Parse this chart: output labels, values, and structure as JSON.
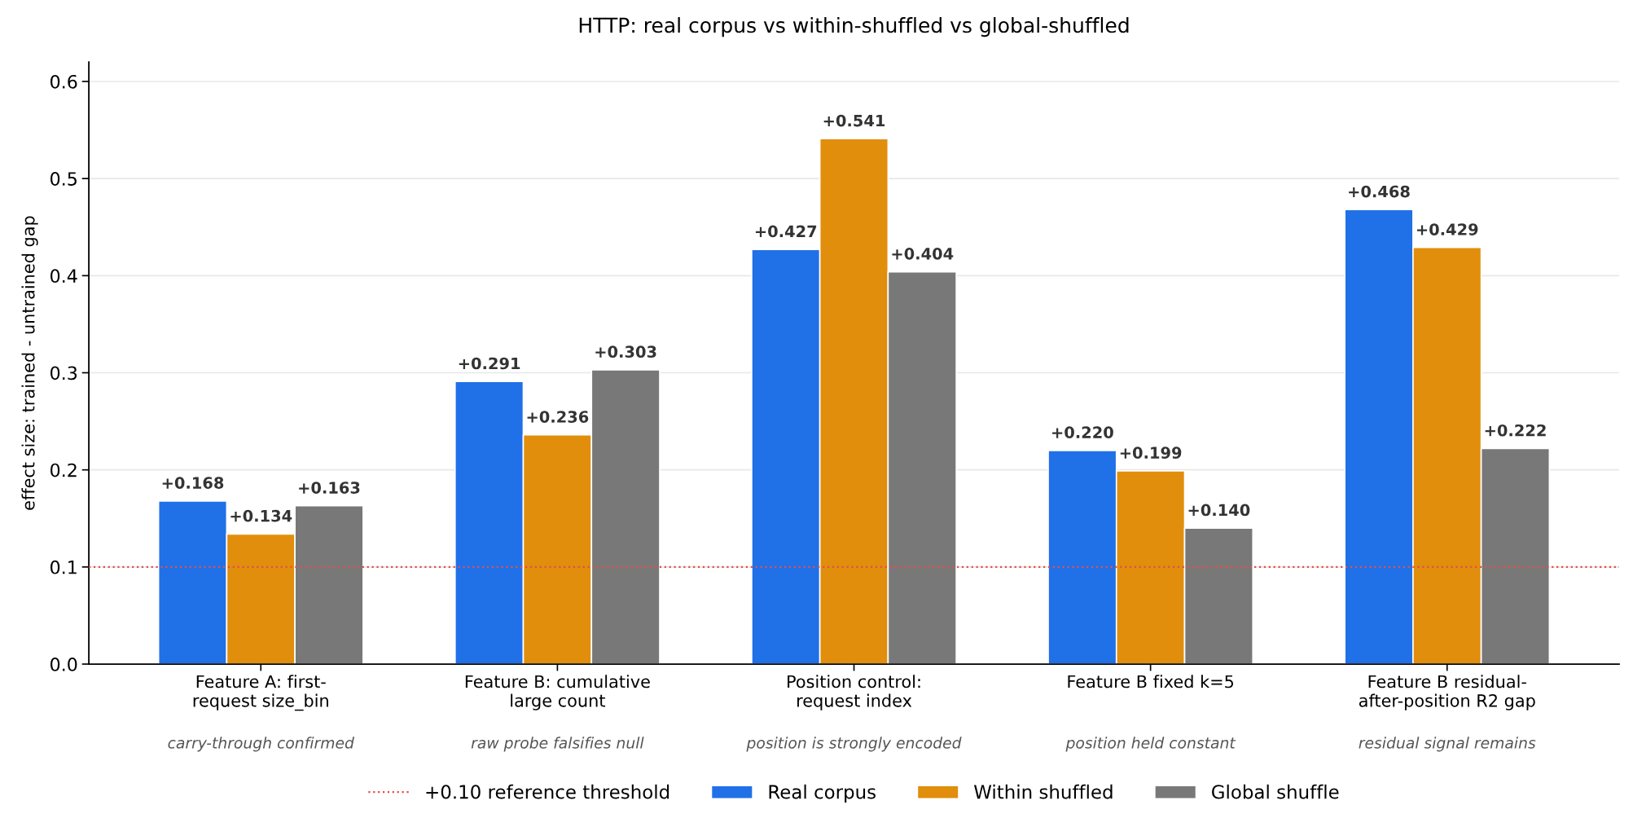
{
  "chart_data": {
    "type": "bar",
    "title": "HTTP: real corpus vs within-shuffled vs global-shuffled",
    "ylabel": "effect size: trained - untrained gap",
    "categories": [
      "Feature A: first-\nrequest size_bin",
      "Feature B: cumulative\nlarge count",
      "Position control:\nrequest index",
      "Feature B fixed k=5",
      "Feature B residual-\nafter-position R2 gap"
    ],
    "series": [
      {
        "name": "Real corpus",
        "color": "#2070e8",
        "values": [
          0.168,
          0.291,
          0.427,
          0.22,
          0.468
        ],
        "value_labels": [
          "+0.168",
          "+0.291",
          "+0.427",
          "+0.220",
          "+0.468"
        ]
      },
      {
        "name": "Within shuffled",
        "color": "#e08e0c",
        "values": [
          0.134,
          0.236,
          0.541,
          0.199,
          0.429
        ],
        "value_labels": [
          "+0.134",
          "+0.236",
          "+0.541",
          "+0.199",
          "+0.429"
        ]
      },
      {
        "name": "Global shuffle",
        "color": "#787878",
        "values": [
          0.163,
          0.303,
          0.404,
          0.14,
          0.222
        ],
        "value_labels": [
          "+0.163",
          "+0.303",
          "+0.404",
          "+0.140",
          "+0.222"
        ]
      }
    ],
    "ylim": [
      0,
      0.62
    ],
    "yticks": [
      {
        "value": 0,
        "label": "0.0"
      },
      0.1,
      0.2,
      0.3,
      0.4,
      0.5,
      0.6
    ],
    "ref_lines": [
      {
        "axis": "y",
        "value": 0.1,
        "label": "+0.10 reference threshold",
        "color": "#e05050",
        "line_style": "dotted"
      }
    ],
    "annotations": [
      "carry-through confirmed",
      "raw probe falsifies null",
      "position is strongly encoded",
      "position held constant",
      "residual signal remains"
    ],
    "grid": "y",
    "legend": "bottom"
  }
}
